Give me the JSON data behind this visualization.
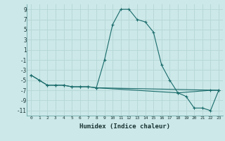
{
  "xlabel": "Humidex (Indice chaleur)",
  "bg_color": "#cce8e8",
  "grid_color": "#b8d8d8",
  "line_color": "#1a6b6b",
  "xlim": [
    -0.5,
    23.5
  ],
  "ylim": [
    -12,
    10
  ],
  "yticks": [
    -11,
    -9,
    -7,
    -5,
    -3,
    -1,
    1,
    3,
    5,
    7,
    9
  ],
  "xticks": [
    0,
    1,
    2,
    3,
    4,
    5,
    6,
    7,
    8,
    9,
    10,
    11,
    12,
    13,
    14,
    15,
    16,
    17,
    18,
    19,
    20,
    21,
    22,
    23
  ],
  "line1_x": [
    0,
    1,
    2,
    3,
    4,
    5,
    6,
    7,
    8,
    9,
    10,
    11,
    12,
    13,
    14,
    15,
    16,
    17,
    18,
    22,
    23
  ],
  "line1_y": [
    -4,
    -5,
    -6,
    -6,
    -6,
    -6.3,
    -6.3,
    -6.3,
    -6.5,
    -1,
    6,
    9,
    9,
    7,
    6.5,
    4.5,
    -2,
    -5,
    -7.5,
    -7,
    -7
  ],
  "line2_x": [
    0,
    1,
    2,
    3,
    4,
    5,
    6,
    7,
    8,
    18,
    19,
    20,
    21,
    22,
    23
  ],
  "line2_y": [
    -4,
    -5,
    -6,
    -6,
    -6,
    -6.3,
    -6.3,
    -6.3,
    -6.5,
    -7.5,
    -8.2,
    -10.5,
    -10.5,
    -11,
    -7
  ],
  "line3_x": [
    8,
    23
  ],
  "line3_y": [
    -6.5,
    -7
  ]
}
